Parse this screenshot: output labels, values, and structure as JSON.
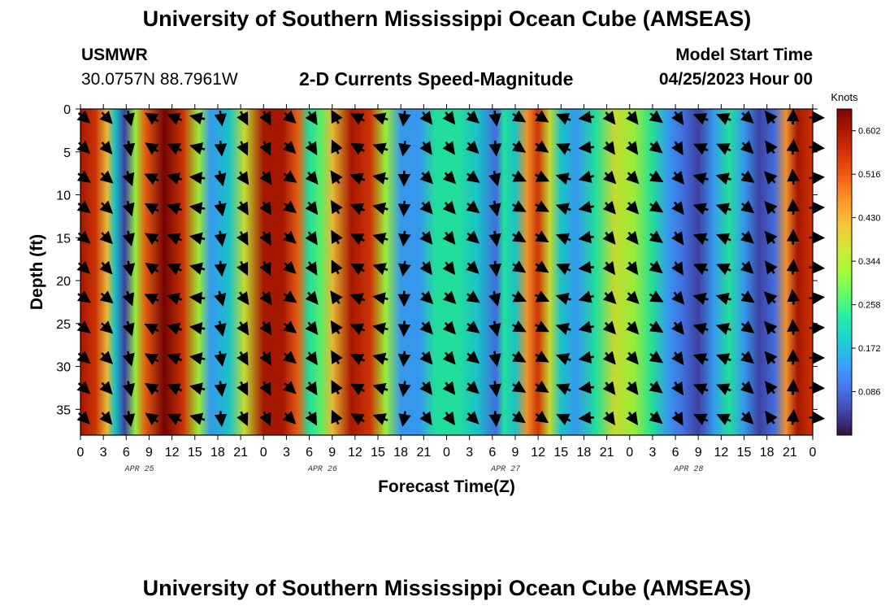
{
  "header": {
    "title": "University of Southern Mississippi Ocean Cube (AMSEAS)",
    "station": "USMWR",
    "coordinates": "30.0757N  88.7961W",
    "plot_title": "2-D Currents Speed-Magnitude",
    "model_start_label": "Model Start Time",
    "model_start_value": "04/25/2023 Hour 00"
  },
  "footer": {
    "title": "University of Southern Mississippi Ocean Cube (AMSEAS)"
  },
  "chart_data": {
    "type": "heatmap",
    "xlabel": "Forecast Time(Z)",
    "ylabel": "Depth (ft)",
    "x_range_hours": [
      0,
      96
    ],
    "y_range_ft": [
      0,
      38
    ],
    "y_ticks": [
      0,
      5,
      10,
      15,
      20,
      25,
      30,
      35
    ],
    "x_tick_labels": [
      "0",
      "3",
      "6",
      "9",
      "12",
      "15",
      "18",
      "21",
      "0",
      "3",
      "6",
      "9",
      "12",
      "15",
      "18",
      "21",
      "0",
      "3",
      "6",
      "9",
      "12",
      "15",
      "18",
      "21",
      "0",
      "3",
      "6",
      "9",
      "12",
      "15",
      "18",
      "21",
      "0"
    ],
    "date_labels": [
      {
        "label": "APR 25",
        "hour": 12
      },
      {
        "label": "APR 26",
        "hour": 36
      },
      {
        "label": "APR 27",
        "hour": 60
      },
      {
        "label": "APR 28",
        "hour": 84
      }
    ],
    "colorbar": {
      "units": "Knots",
      "min": 0.0,
      "max": 0.645,
      "ticks": [
        "0.602",
        "0.516",
        "0.430",
        "0.344",
        "0.258",
        "0.172",
        "0.086"
      ],
      "colors": [
        "#30123b",
        "#4145ab",
        "#4675ed",
        "#39a2fc",
        "#1bcfd4",
        "#24eca6",
        "#61fc6c",
        "#a4fc3b",
        "#d1e834",
        "#f3c63a",
        "#fe9b2d",
        "#f36315",
        "#d93806",
        "#b11901",
        "#7a0403"
      ]
    },
    "speed_profile_knots": [
      {
        "hour": 0,
        "value": 0.58
      },
      {
        "hour": 2,
        "value": 0.56
      },
      {
        "hour": 3.5,
        "value": 0.42
      },
      {
        "hour": 4.5,
        "value": 0.2
      },
      {
        "hour": 5.8,
        "value": 0.05
      },
      {
        "hour": 7.2,
        "value": 0.3
      },
      {
        "hour": 8.5,
        "value": 0.52
      },
      {
        "hour": 11,
        "value": 0.63
      },
      {
        "hour": 13.5,
        "value": 0.55
      },
      {
        "hour": 15.5,
        "value": 0.3
      },
      {
        "hour": 17,
        "value": 0.16
      },
      {
        "hour": 19.5,
        "value": 0.2
      },
      {
        "hour": 21.5,
        "value": 0.38
      },
      {
        "hour": 24,
        "value": 0.6
      },
      {
        "hour": 26.5,
        "value": 0.62
      },
      {
        "hour": 28.5,
        "value": 0.5
      },
      {
        "hour": 30,
        "value": 0.25
      },
      {
        "hour": 31.5,
        "value": 0.26
      },
      {
        "hour": 33,
        "value": 0.42
      },
      {
        "hour": 35.5,
        "value": 0.6
      },
      {
        "hour": 38,
        "value": 0.55
      },
      {
        "hour": 40,
        "value": 0.3
      },
      {
        "hour": 42,
        "value": 0.15
      },
      {
        "hour": 44.5,
        "value": 0.16
      },
      {
        "hour": 46.5,
        "value": 0.22
      },
      {
        "hour": 49.5,
        "value": 0.24
      },
      {
        "hour": 52,
        "value": 0.2
      },
      {
        "hour": 54.5,
        "value": 0.1
      },
      {
        "hour": 55.5,
        "value": 0.25
      },
      {
        "hour": 57,
        "value": 0.18
      },
      {
        "hour": 58.5,
        "value": 0.45
      },
      {
        "hour": 60,
        "value": 0.55
      },
      {
        "hour": 61.5,
        "value": 0.35
      },
      {
        "hour": 63,
        "value": 0.18
      },
      {
        "hour": 65,
        "value": 0.13
      },
      {
        "hour": 67.5,
        "value": 0.22
      },
      {
        "hour": 70,
        "value": 0.38
      },
      {
        "hour": 72.5,
        "value": 0.32
      },
      {
        "hour": 75,
        "value": 0.22
      },
      {
        "hour": 77,
        "value": 0.16
      },
      {
        "hour": 79,
        "value": 0.1
      },
      {
        "hour": 81,
        "value": 0.05
      },
      {
        "hour": 83,
        "value": 0.12
      },
      {
        "hour": 85,
        "value": 0.25
      },
      {
        "hour": 87,
        "value": 0.15
      },
      {
        "hour": 89,
        "value": 0.04
      },
      {
        "hour": 91,
        "value": 0.1
      },
      {
        "hour": 92.5,
        "value": 0.45
      },
      {
        "hour": 94,
        "value": 0.6
      },
      {
        "hour": 96,
        "value": 0.55
      }
    ],
    "vector_directions_deg": [
      {
        "hour": 0,
        "angle": 40
      },
      {
        "hour": 4,
        "angle": 45
      },
      {
        "hour": 6,
        "angle": 75
      },
      {
        "hour": 8,
        "angle": -150
      },
      {
        "hour": 12,
        "angle": -160
      },
      {
        "hour": 15,
        "angle": -170
      },
      {
        "hour": 19,
        "angle": 80
      },
      {
        "hour": 22,
        "angle": 60
      },
      {
        "hour": 26,
        "angle": 40
      },
      {
        "hour": 30,
        "angle": 55
      },
      {
        "hour": 32,
        "angle": -120
      },
      {
        "hour": 36,
        "angle": -155
      },
      {
        "hour": 40,
        "angle": -165
      },
      {
        "hour": 43,
        "angle": 95
      },
      {
        "hour": 46,
        "angle": 50
      },
      {
        "hour": 50,
        "angle": 40
      },
      {
        "hour": 55,
        "angle": 80
      },
      {
        "hour": 58,
        "angle": 30
      },
      {
        "hour": 62,
        "angle": -160
      },
      {
        "hour": 66,
        "angle": 170
      },
      {
        "hour": 70,
        "angle": 50
      },
      {
        "hour": 74,
        "angle": 35
      },
      {
        "hour": 78,
        "angle": 55
      },
      {
        "hour": 82,
        "angle": -160
      },
      {
        "hour": 86,
        "angle": 40
      },
      {
        "hour": 90,
        "angle": -130
      },
      {
        "hour": 93,
        "angle": -90
      },
      {
        "hour": 96,
        "angle": 0
      }
    ]
  }
}
